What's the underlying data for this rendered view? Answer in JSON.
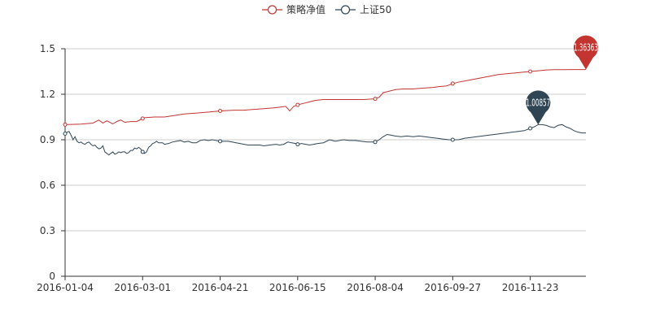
{
  "chart_data": {
    "type": "line",
    "title": "",
    "xlabel": "",
    "ylabel": "",
    "ylim": [
      0,
      1.5
    ],
    "yticks": [
      0,
      0.3,
      0.6,
      0.9,
      1.2,
      1.5
    ],
    "grid": "horizontal",
    "legend_position": "top-center",
    "x_tick_labels": [
      "2016-01-04",
      "2016-03-01",
      "2016-04-21",
      "2016-06-15",
      "2016-08-04",
      "2016-09-27",
      "2016-11-23"
    ],
    "x_tick_index": [
      0,
      39,
      78,
      117,
      156,
      195,
      234
    ],
    "x_count": 263,
    "series": [
      {
        "name": "策略净值",
        "color": "#c23531",
        "symbol_every": 39,
        "points": [
          [
            0,
            1.0
          ],
          [
            8,
            1.003
          ],
          [
            14,
            1.01
          ],
          [
            17,
            1.03
          ],
          [
            19,
            1.01
          ],
          [
            21,
            1.025
          ],
          [
            24,
            1.005
          ],
          [
            26,
            1.02
          ],
          [
            28,
            1.03
          ],
          [
            30,
            1.015
          ],
          [
            33,
            1.02
          ],
          [
            36,
            1.02
          ],
          [
            39,
            1.04
          ],
          [
            40,
            1.045
          ],
          [
            45,
            1.05
          ],
          [
            50,
            1.05
          ],
          [
            55,
            1.06
          ],
          [
            60,
            1.07
          ],
          [
            65,
            1.075
          ],
          [
            70,
            1.08
          ],
          [
            74,
            1.085
          ],
          [
            78,
            1.09
          ],
          [
            85,
            1.095
          ],
          [
            90,
            1.095
          ],
          [
            95,
            1.1
          ],
          [
            100,
            1.105
          ],
          [
            105,
            1.11
          ],
          [
            108,
            1.115
          ],
          [
            111,
            1.12
          ],
          [
            113,
            1.09
          ],
          [
            115,
            1.12
          ],
          [
            117,
            1.13
          ],
          [
            120,
            1.14
          ],
          [
            123,
            1.15
          ],
          [
            126,
            1.16
          ],
          [
            130,
            1.165
          ],
          [
            135,
            1.165
          ],
          [
            140,
            1.165
          ],
          [
            145,
            1.165
          ],
          [
            150,
            1.165
          ],
          [
            156,
            1.17
          ],
          [
            158,
            1.18
          ],
          [
            160,
            1.21
          ],
          [
            163,
            1.22
          ],
          [
            166,
            1.23
          ],
          [
            170,
            1.235
          ],
          [
            175,
            1.235
          ],
          [
            180,
            1.24
          ],
          [
            185,
            1.245
          ],
          [
            188,
            1.25
          ],
          [
            192,
            1.255
          ],
          [
            195,
            1.27
          ],
          [
            198,
            1.28
          ],
          [
            202,
            1.29
          ],
          [
            206,
            1.3
          ],
          [
            210,
            1.31
          ],
          [
            214,
            1.32
          ],
          [
            218,
            1.33
          ],
          [
            222,
            1.335
          ],
          [
            226,
            1.34
          ],
          [
            230,
            1.345
          ],
          [
            234,
            1.35
          ],
          [
            238,
            1.355
          ],
          [
            242,
            1.36
          ],
          [
            246,
            1.362
          ],
          [
            250,
            1.362
          ],
          [
            255,
            1.363
          ],
          [
            262,
            1.363
          ]
        ],
        "pin_index": 262,
        "pin_label": "1.36363"
      },
      {
        "name": "上证50",
        "color": "#2f4554",
        "symbol_every": 39,
        "points": [
          [
            0,
            0.94
          ],
          [
            1,
            0.95
          ],
          [
            2,
            0.955
          ],
          [
            3,
            0.93
          ],
          [
            4,
            0.9
          ],
          [
            5,
            0.92
          ],
          [
            6,
            0.89
          ],
          [
            7,
            0.88
          ],
          [
            8,
            0.885
          ],
          [
            9,
            0.875
          ],
          [
            10,
            0.87
          ],
          [
            11,
            0.88
          ],
          [
            12,
            0.885
          ],
          [
            13,
            0.87
          ],
          [
            14,
            0.86
          ],
          [
            15,
            0.865
          ],
          [
            16,
            0.85
          ],
          [
            17,
            0.84
          ],
          [
            18,
            0.845
          ],
          [
            19,
            0.86
          ],
          [
            20,
            0.82
          ],
          [
            21,
            0.81
          ],
          [
            22,
            0.8
          ],
          [
            23,
            0.81
          ],
          [
            24,
            0.82
          ],
          [
            25,
            0.805
          ],
          [
            26,
            0.81
          ],
          [
            27,
            0.82
          ],
          [
            28,
            0.815
          ],
          [
            29,
            0.82
          ],
          [
            30,
            0.82
          ],
          [
            31,
            0.81
          ],
          [
            32,
            0.815
          ],
          [
            33,
            0.83
          ],
          [
            34,
            0.83
          ],
          [
            35,
            0.845
          ],
          [
            36,
            0.84
          ],
          [
            37,
            0.85
          ],
          [
            38,
            0.84
          ],
          [
            39,
            0.82
          ],
          [
            40,
            0.81
          ],
          [
            41,
            0.82
          ],
          [
            42,
            0.85
          ],
          [
            43,
            0.86
          ],
          [
            44,
            0.875
          ],
          [
            45,
            0.88
          ],
          [
            46,
            0.89
          ],
          [
            47,
            0.88
          ],
          [
            48,
            0.88
          ],
          [
            49,
            0.88
          ],
          [
            50,
            0.87
          ],
          [
            52,
            0.875
          ],
          [
            54,
            0.885
          ],
          [
            56,
            0.89
          ],
          [
            58,
            0.895
          ],
          [
            60,
            0.885
          ],
          [
            62,
            0.89
          ],
          [
            64,
            0.88
          ],
          [
            66,
            0.88
          ],
          [
            68,
            0.895
          ],
          [
            70,
            0.9
          ],
          [
            72,
            0.895
          ],
          [
            74,
            0.9
          ],
          [
            76,
            0.895
          ],
          [
            78,
            0.89
          ],
          [
            80,
            0.89
          ],
          [
            82,
            0.89
          ],
          [
            84,
            0.885
          ],
          [
            86,
            0.88
          ],
          [
            88,
            0.875
          ],
          [
            90,
            0.87
          ],
          [
            92,
            0.865
          ],
          [
            95,
            0.865
          ],
          [
            98,
            0.865
          ],
          [
            100,
            0.86
          ],
          [
            103,
            0.865
          ],
          [
            106,
            0.87
          ],
          [
            108,
            0.865
          ],
          [
            110,
            0.87
          ],
          [
            112,
            0.885
          ],
          [
            114,
            0.88
          ],
          [
            116,
            0.875
          ],
          [
            117,
            0.87
          ],
          [
            119,
            0.875
          ],
          [
            121,
            0.87
          ],
          [
            123,
            0.865
          ],
          [
            125,
            0.87
          ],
          [
            127,
            0.875
          ],
          [
            130,
            0.88
          ],
          [
            133,
            0.9
          ],
          [
            136,
            0.89
          ],
          [
            138,
            0.895
          ],
          [
            140,
            0.9
          ],
          [
            143,
            0.895
          ],
          [
            146,
            0.895
          ],
          [
            149,
            0.89
          ],
          [
            152,
            0.885
          ],
          [
            156,
            0.885
          ],
          [
            158,
            0.9
          ],
          [
            160,
            0.92
          ],
          [
            162,
            0.935
          ],
          [
            164,
            0.93
          ],
          [
            166,
            0.925
          ],
          [
            169,
            0.92
          ],
          [
            172,
            0.925
          ],
          [
            175,
            0.92
          ],
          [
            178,
            0.925
          ],
          [
            181,
            0.92
          ],
          [
            184,
            0.915
          ],
          [
            187,
            0.91
          ],
          [
            190,
            0.905
          ],
          [
            193,
            0.9
          ],
          [
            195,
            0.9
          ],
          [
            198,
            0.9
          ],
          [
            201,
            0.91
          ],
          [
            204,
            0.915
          ],
          [
            207,
            0.92
          ],
          [
            210,
            0.925
          ],
          [
            213,
            0.93
          ],
          [
            216,
            0.935
          ],
          [
            219,
            0.94
          ],
          [
            222,
            0.945
          ],
          [
            225,
            0.95
          ],
          [
            228,
            0.955
          ],
          [
            231,
            0.96
          ],
          [
            234,
            0.975
          ],
          [
            236,
            0.985
          ],
          [
            238,
            1.0
          ],
          [
            240,
            1.0
          ],
          [
            242,
            0.995
          ],
          [
            244,
            0.985
          ],
          [
            246,
            0.98
          ],
          [
            248,
            0.995
          ],
          [
            250,
            1.0
          ],
          [
            252,
            0.985
          ],
          [
            254,
            0.975
          ],
          [
            256,
            0.96
          ],
          [
            258,
            0.95
          ],
          [
            260,
            0.945
          ],
          [
            262,
            0.945
          ]
        ],
        "pin_index": 238,
        "pin_label": "1.00857"
      }
    ]
  }
}
